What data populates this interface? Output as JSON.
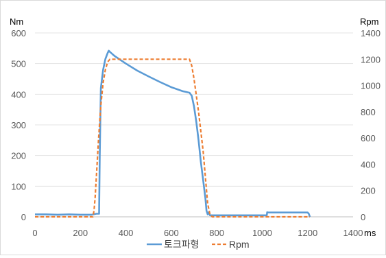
{
  "chart_data": {
    "type": "line",
    "y_left_unit": "Nm",
    "y_right_unit": "Rpm",
    "x_unit": "ms",
    "xlim": [
      0,
      1400
    ],
    "ylim_left": [
      0,
      600
    ],
    "ylim_right": [
      0,
      1400
    ],
    "x_ticks": [
      "0",
      "200",
      "400",
      "600",
      "800",
      "1000",
      "1200",
      "1400"
    ],
    "y_left_ticks": [
      "0",
      "100",
      "200",
      "300",
      "400",
      "500",
      "600"
    ],
    "y_right_ticks": [
      "0",
      "200",
      "400",
      "600",
      "800",
      "1000",
      "1200",
      "1400"
    ],
    "grid": "horizontal",
    "legend_position": "bottom",
    "series": [
      {
        "name": "토크파형",
        "axis": "left",
        "color": "#5b9bd5",
        "style": "solid",
        "x": [
          0,
          50,
          100,
          150,
          200,
          250,
          270,
          282,
          285,
          290,
          300,
          310,
          320,
          325,
          330,
          350,
          400,
          450,
          500,
          550,
          600,
          650,
          680,
          690,
          700,
          710,
          720,
          730,
          740,
          750,
          755,
          760,
          765,
          770,
          780,
          800,
          900,
          1000,
          1020,
          1022,
          1025,
          1100,
          1200,
          1205,
          1210
        ],
        "y": [
          8,
          8,
          7,
          8,
          7,
          7,
          10,
          10,
          200,
          420,
          480,
          515,
          535,
          542,
          538,
          525,
          500,
          477,
          458,
          440,
          423,
          410,
          405,
          395,
          360,
          310,
          250,
          180,
          120,
          60,
          20,
          8,
          15,
          5,
          5,
          5,
          5,
          5,
          5,
          15,
          14,
          14,
          14,
          10,
          0
        ]
      },
      {
        "name": "Rpm",
        "axis": "right",
        "color": "#ed7d31",
        "style": "dashed",
        "x": [
          0,
          100,
          200,
          240,
          255,
          260,
          265,
          270,
          280,
          290,
          300,
          310,
          320,
          330,
          340,
          400,
          500,
          600,
          680,
          690,
          700,
          720,
          740,
          750,
          760,
          770,
          780,
          800,
          900,
          1000,
          1100,
          1200,
          1210
        ],
        "y": [
          0,
          0,
          0,
          0,
          0,
          50,
          150,
          300,
          600,
          850,
          1020,
          1120,
          1180,
          1200,
          1200,
          1200,
          1200,
          1200,
          1200,
          1150,
          1050,
          800,
          500,
          300,
          100,
          20,
          0,
          0,
          0,
          0,
          0,
          0,
          0
        ]
      }
    ]
  }
}
